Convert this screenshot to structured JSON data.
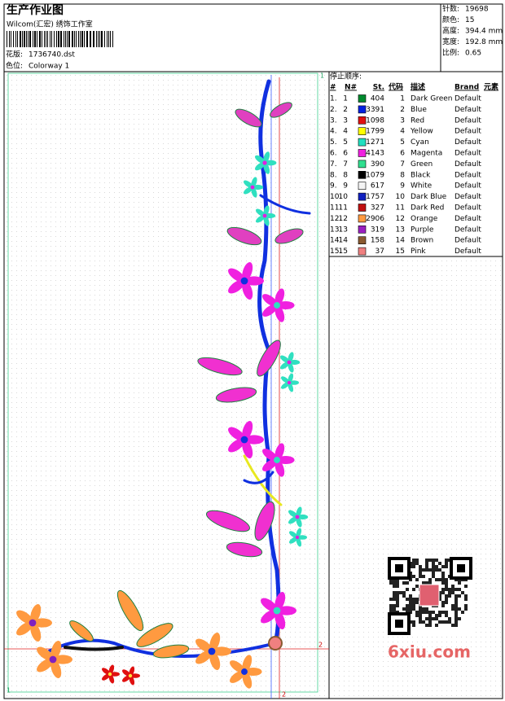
{
  "header": {
    "title": "生产作业图",
    "studio": "Wilcom(汇宏) 绣饰工作室",
    "design_file": {
      "label": "花版:",
      "value": "1736740.dst"
    },
    "colorway": {
      "label": "色位:",
      "value": "Colorway 1"
    }
  },
  "info": [
    {
      "label": "针数:",
      "value": "19698"
    },
    {
      "label": "颜色:",
      "value": "15"
    },
    {
      "label": "高度:",
      "value": "394.4 mm"
    },
    {
      "label": "宽度:",
      "value": "192.8 mm"
    },
    {
      "label": "比例:",
      "value": "0.65"
    }
  ],
  "table": {
    "title": "停止顺序:",
    "headers": [
      "#",
      "N#",
      "St.",
      "代码",
      "描述",
      "Brand",
      "元素"
    ],
    "rows": [
      {
        "index": "1.",
        "needle": 1,
        "stitches": 404,
        "code": 1,
        "description": "Dark Green",
        "brand": "Default",
        "color": "#008a2e"
      },
      {
        "index": "2.",
        "needle": 2,
        "stitches": 3391,
        "code": 2,
        "description": "Blue",
        "brand": "Default",
        "color": "#0020e0"
      },
      {
        "index": "3.",
        "needle": 3,
        "stitches": 1098,
        "code": 3,
        "description": "Red",
        "brand": "Default",
        "color": "#e01010"
      },
      {
        "index": "4.",
        "needle": 4,
        "stitches": 1799,
        "code": 4,
        "description": "Yellow",
        "brand": "Default",
        "color": "#ffff00"
      },
      {
        "index": "5.",
        "needle": 5,
        "stitches": 1271,
        "code": 5,
        "description": "Cyan",
        "brand": "Default",
        "color": "#20e0c0"
      },
      {
        "index": "6.",
        "needle": 6,
        "stitches": 4143,
        "code": 6,
        "description": "Magenta",
        "brand": "Default",
        "color": "#f020e0"
      },
      {
        "index": "7.",
        "needle": 7,
        "stitches": 390,
        "code": 7,
        "description": "Green",
        "brand": "Default",
        "color": "#30e090"
      },
      {
        "index": "8.",
        "needle": 8,
        "stitches": 1079,
        "code": 8,
        "description": "Black",
        "brand": "Default",
        "color": "#000000"
      },
      {
        "index": "9.",
        "needle": 9,
        "stitches": 617,
        "code": 9,
        "description": "White",
        "brand": "Default",
        "color": "#f4f4f4"
      },
      {
        "index": "10.",
        "needle": 10,
        "stitches": 1757,
        "code": 10,
        "description": "Dark Blue",
        "brand": "Default",
        "color": "#1020c0"
      },
      {
        "index": "11.",
        "needle": 11,
        "stitches": 327,
        "code": 11,
        "description": "Dark Red",
        "brand": "Default",
        "color": "#c01010"
      },
      {
        "index": "12.",
        "needle": 12,
        "stitches": 2906,
        "code": 12,
        "description": "Orange",
        "brand": "Default",
        "color": "#ff9a40"
      },
      {
        "index": "13.",
        "needle": 13,
        "stitches": 319,
        "code": 13,
        "description": "Purple",
        "brand": "Default",
        "color": "#9a20c0"
      },
      {
        "index": "14.",
        "needle": 14,
        "stitches": 158,
        "code": 14,
        "description": "Brown",
        "brand": "Default",
        "color": "#8a5a30"
      },
      {
        "index": "15.",
        "needle": 15,
        "stitches": 37,
        "code": 15,
        "description": "Pink",
        "brand": "Default",
        "color": "#f08080"
      }
    ]
  },
  "design": {
    "markers": [
      "1",
      "2",
      "2",
      "1"
    ],
    "watermark": "6xiu.com"
  }
}
